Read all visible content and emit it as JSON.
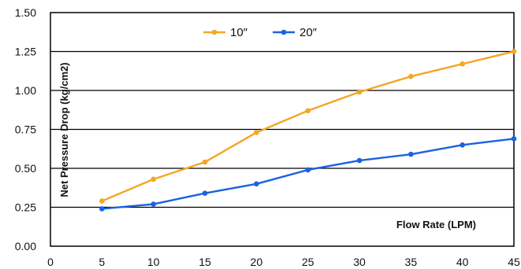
{
  "chart_data": {
    "type": "line",
    "title": "",
    "xlabel": "Flow Rate (LPM)",
    "ylabel": "Net Pressure Drop (kg/cm2)",
    "xlim": [
      0,
      45
    ],
    "ylim": [
      0,
      1.5
    ],
    "x_ticks": [
      "0",
      "5",
      "10",
      "15",
      "20",
      "25",
      "30",
      "35",
      "40",
      "45"
    ],
    "y_ticks": [
      "0.00",
      "0.25",
      "0.50",
      "0.75",
      "1.00",
      "1.25",
      "1.50"
    ],
    "grid": "horizontal",
    "legend_position": "top",
    "x": [
      5,
      10,
      15,
      20,
      25,
      30,
      35,
      40,
      45
    ],
    "series": [
      {
        "name": "10″",
        "color": "#f5a623",
        "values": [
          0.29,
          0.43,
          0.54,
          0.73,
          0.87,
          0.99,
          1.09,
          1.17,
          1.25
        ]
      },
      {
        "name": "20″",
        "color": "#1a62e0",
        "values": [
          0.24,
          0.27,
          0.34,
          0.4,
          0.49,
          0.55,
          0.59,
          0.65,
          0.69
        ]
      }
    ]
  }
}
